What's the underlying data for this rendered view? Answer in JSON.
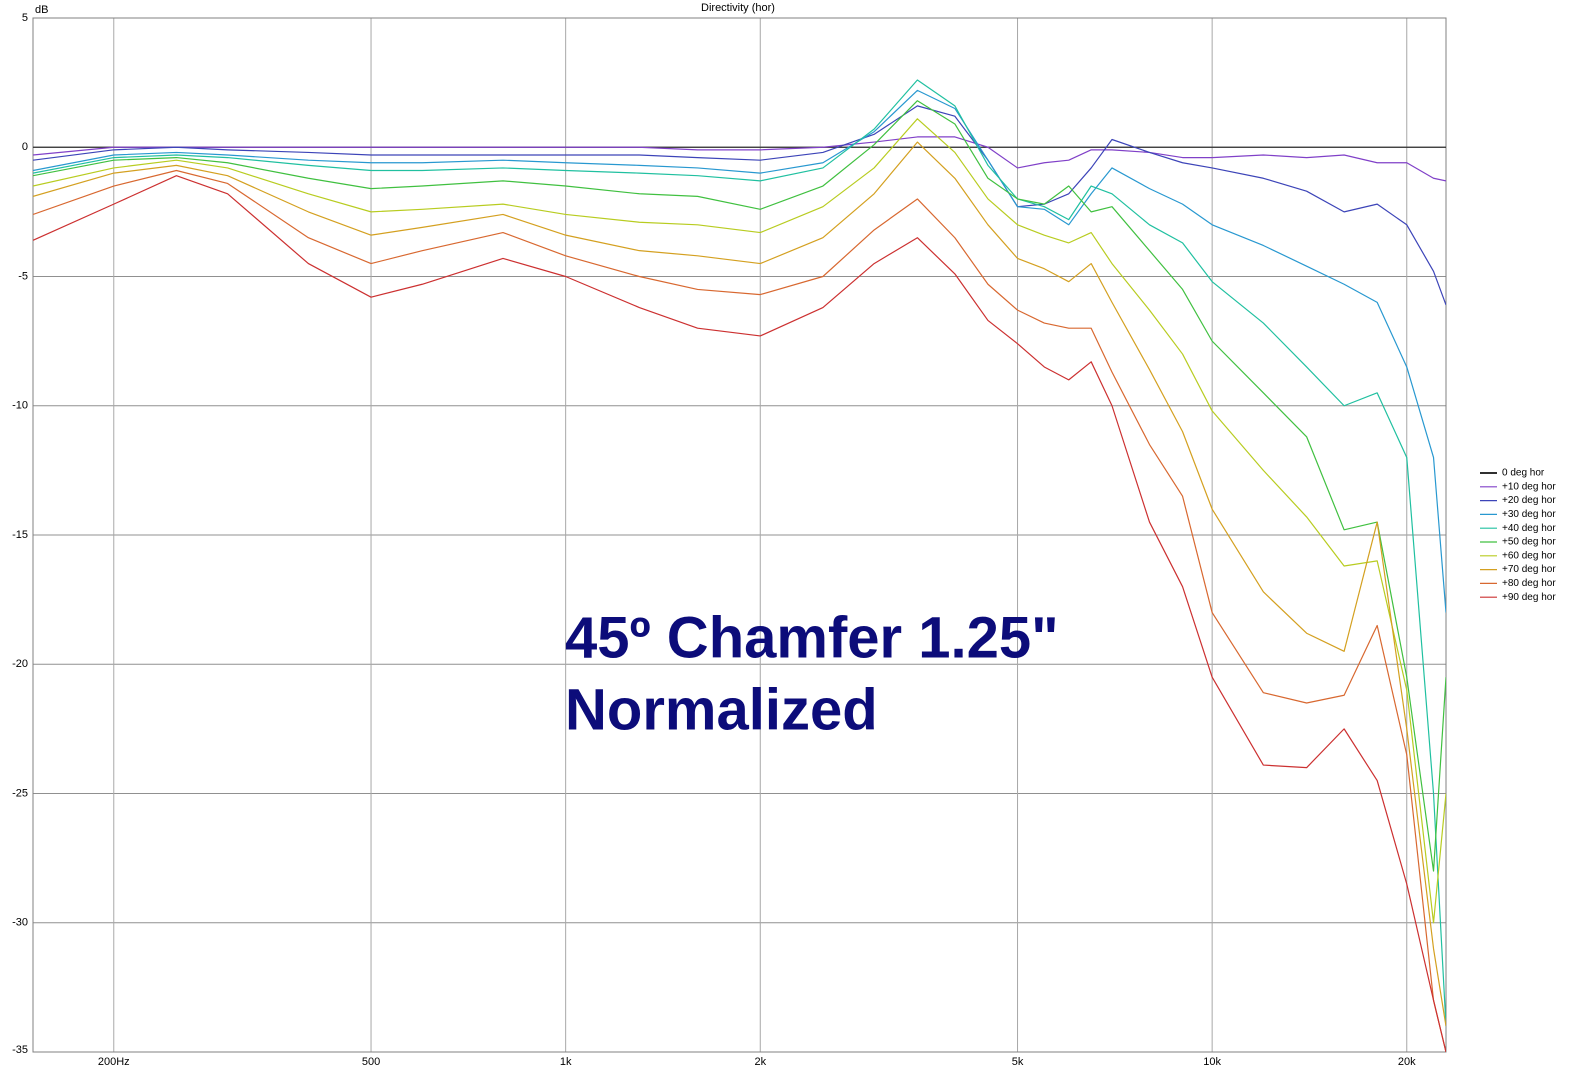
{
  "chart_data": {
    "type": "line",
    "title": "Directivity (hor)",
    "y_label": "dB",
    "annotations": [
      "45º Chamfer 1.25\"",
      "Normalized"
    ],
    "annotation_color": "#0c0c7a",
    "xscale": "log",
    "grid": true,
    "legend": "right",
    "xlim": [
      150,
      23000
    ],
    "ylim": [
      -35,
      5
    ],
    "xticks": [
      {
        "value": 200,
        "label": "200Hz"
      },
      500,
      {
        "value": 1000,
        "label": "1k"
      },
      {
        "value": 2000,
        "label": "2k"
      },
      {
        "value": 5000,
        "label": "5k"
      },
      {
        "value": 10000,
        "label": "10k"
      },
      {
        "value": 20000,
        "label": "20k"
      }
    ],
    "yticks": [
      5,
      0,
      -5,
      -10,
      -15,
      -20,
      -25,
      -30,
      -35
    ],
    "x": [
      150,
      200,
      250,
      300,
      400,
      500,
      600,
      800,
      1000,
      1300,
      1600,
      2000,
      2500,
      3000,
      3500,
      4000,
      4500,
      5000,
      5500,
      6000,
      6500,
      7000,
      8000,
      9000,
      10000,
      12000,
      14000,
      16000,
      18000,
      20000,
      22000,
      23000
    ],
    "series": [
      {
        "name": "0 deg hor",
        "color": "#303030",
        "values": [
          0,
          0,
          0,
          0,
          0,
          0,
          0,
          0,
          0,
          0,
          0,
          0,
          0,
          0,
          0,
          0,
          0,
          0,
          0,
          0,
          0,
          0,
          0,
          0,
          0,
          0,
          0,
          0,
          0,
          0,
          0,
          0
        ]
      },
      {
        "name": "+10 deg hor",
        "color": "#8040c8",
        "values": [
          -0.3,
          0,
          0,
          0,
          0,
          0,
          0,
          0,
          0,
          0,
          -0.1,
          -0.1,
          0,
          0.2,
          0.4,
          0.4,
          0,
          -0.8,
          -0.6,
          -0.5,
          -0.1,
          -0.1,
          -0.2,
          -0.4,
          -0.4,
          -0.3,
          -0.4,
          -0.3,
          -0.6,
          -0.6,
          -1.2,
          -1.3
        ]
      },
      {
        "name": "+20 deg hor",
        "color": "#3c44b8",
        "values": [
          -0.5,
          -0.1,
          0,
          -0.1,
          -0.2,
          -0.3,
          -0.3,
          -0.3,
          -0.3,
          -0.3,
          -0.4,
          -0.5,
          -0.2,
          0.5,
          1.6,
          1.2,
          -0.5,
          -2.3,
          -2.2,
          -1.8,
          -0.8,
          0.3,
          -0.2,
          -0.6,
          -0.8,
          -1.2,
          -1.7,
          -2.5,
          -2.2,
          -3.0,
          -4.8,
          -6.1
        ]
      },
      {
        "name": "+30 deg hor",
        "color": "#2898d0",
        "values": [
          -0.9,
          -0.3,
          -0.2,
          -0.3,
          -0.5,
          -0.6,
          -0.6,
          -0.5,
          -0.6,
          -0.7,
          -0.8,
          -1.0,
          -0.6,
          0.6,
          2.2,
          1.5,
          -0.5,
          -2.3,
          -2.4,
          -3.0,
          -1.8,
          -0.8,
          -1.6,
          -2.2,
          -3.0,
          -3.8,
          -4.6,
          -5.3,
          -6.0,
          -8.5,
          -12,
          -18
        ]
      },
      {
        "name": "+40 deg hor",
        "color": "#20c0a0",
        "values": [
          -1.0,
          -0.4,
          -0.3,
          -0.4,
          -0.7,
          -0.9,
          -0.9,
          -0.8,
          -0.9,
          -1.0,
          -1.1,
          -1.3,
          -0.8,
          0.7,
          2.6,
          1.6,
          -0.7,
          -2.0,
          -2.3,
          -2.8,
          -1.5,
          -1.8,
          -3.0,
          -3.7,
          -5.2,
          -6.8,
          -8.5,
          -10.0,
          -9.5,
          -12,
          -25,
          -34
        ]
      },
      {
        "name": "+50 deg hor",
        "color": "#40c040",
        "values": [
          -1.1,
          -0.5,
          -0.4,
          -0.6,
          -1.2,
          -1.6,
          -1.5,
          -1.3,
          -1.5,
          -1.8,
          -1.9,
          -2.4,
          -1.5,
          0.1,
          1.8,
          0.9,
          -1.2,
          -2.0,
          -2.2,
          -1.5,
          -2.5,
          -2.3,
          -4.0,
          -5.5,
          -7.5,
          -9.5,
          -11.2,
          -14.8,
          -14.5,
          -20.5,
          -28,
          -20.5
        ]
      },
      {
        "name": "+60 deg hor",
        "color": "#b8cc20",
        "values": [
          -1.5,
          -0.8,
          -0.5,
          -0.8,
          -1.8,
          -2.5,
          -2.4,
          -2.2,
          -2.6,
          -2.9,
          -3.0,
          -3.3,
          -2.3,
          -0.8,
          1.1,
          -0.2,
          -2.0,
          -3.0,
          -3.4,
          -3.7,
          -3.3,
          -4.5,
          -6.3,
          -8.0,
          -10.2,
          -12.5,
          -14.3,
          -16.2,
          -16.0,
          -21,
          -30,
          -25
        ]
      },
      {
        "name": "+70 deg hor",
        "color": "#d4a020",
        "values": [
          -1.9,
          -1.0,
          -0.7,
          -1.1,
          -2.5,
          -3.4,
          -3.1,
          -2.6,
          -3.4,
          -4.0,
          -4.2,
          -4.5,
          -3.5,
          -1.8,
          0.2,
          -1.2,
          -3.0,
          -4.3,
          -4.7,
          -5.2,
          -4.5,
          -6.0,
          -8.6,
          -11.0,
          -14.0,
          -17.2,
          -18.8,
          -19.5,
          -14.5,
          -22.5,
          -31,
          -34
        ]
      },
      {
        "name": "+80 deg hor",
        "color": "#d86830",
        "values": [
          -2.6,
          -1.5,
          -0.9,
          -1.4,
          -3.5,
          -4.5,
          -4.0,
          -3.3,
          -4.2,
          -5.0,
          -5.5,
          -5.7,
          -5.0,
          -3.2,
          -2.0,
          -3.5,
          -5.3,
          -6.3,
          -6.8,
          -7.0,
          -7.0,
          -8.7,
          -11.5,
          -13.5,
          -18,
          -21.1,
          -21.5,
          -21.2,
          -18.5,
          -23.5,
          -33,
          -35
        ]
      },
      {
        "name": "+90 deg hor",
        "color": "#cc3030",
        "values": [
          -3.6,
          -2.2,
          -1.1,
          -1.8,
          -4.5,
          -5.8,
          -5.3,
          -4.3,
          -5.0,
          -6.2,
          -7.0,
          -7.3,
          -6.2,
          -4.5,
          -3.5,
          -4.9,
          -6.7,
          -7.6,
          -8.5,
          -9.0,
          -8.3,
          -10.0,
          -14.5,
          -17.0,
          -20.5,
          -23.9,
          -24,
          -22.5,
          -24.5,
          -28.5,
          -33,
          -35
        ]
      }
    ]
  }
}
